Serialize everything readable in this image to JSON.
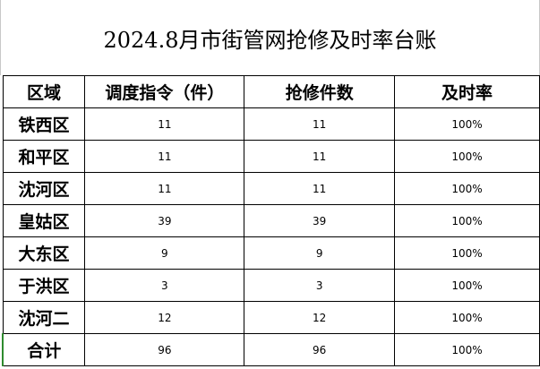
{
  "header": {
    "title": "2024.8月市街管网抢修及时率台账"
  },
  "table": {
    "columns": [
      "区域",
      "调度指令（件）",
      "抢修件数",
      "及时率"
    ],
    "rows": [
      [
        "铁西区",
        11,
        11,
        "100%"
      ],
      [
        "和平区",
        11,
        11,
        "100%"
      ],
      [
        "沈河区",
        11,
        11,
        "100%"
      ],
      [
        "皇姑区",
        39,
        39,
        "100%"
      ],
      [
        "大东区",
        9,
        9,
        "100%"
      ],
      [
        "于洪区",
        3,
        3,
        "100%"
      ],
      [
        "沈河二",
        12,
        12,
        "100%"
      ],
      [
        "合计",
        96,
        96,
        "100%"
      ]
    ]
  }
}
